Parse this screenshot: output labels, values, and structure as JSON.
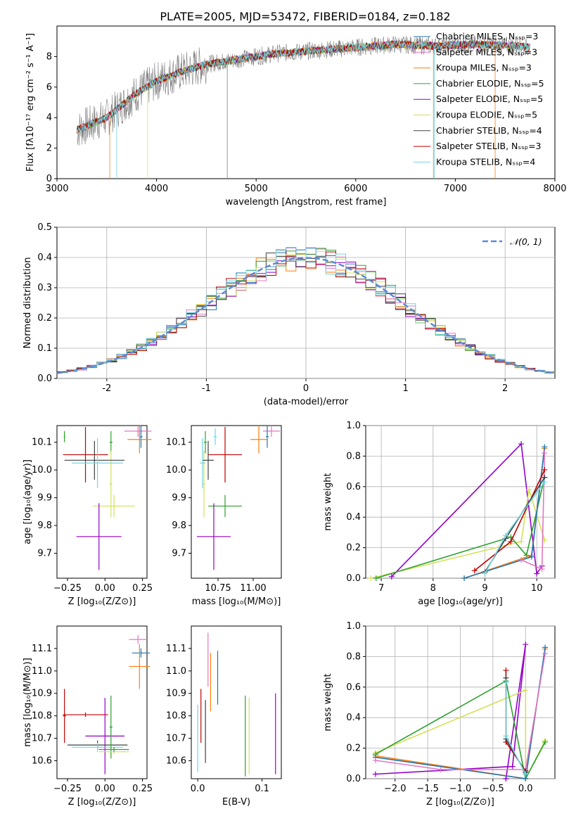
{
  "title": "PLATE=2005, MJD=53472, FIBERID=0184, z=0.182",
  "colors": {
    "chabrier_miles": "#1f77b4",
    "salpeter_miles": "#e377c2",
    "kroupa_miles": "#ff7f0e",
    "chabrier_elodie": "#2ca02c",
    "salpeter_elodie": "#9400c8",
    "kroupa_elodie": "#d4e157",
    "chabrier_stelib": "#404040",
    "salpeter_stelib": "#c00000",
    "kroupa_stelib": "#6fd6e0",
    "data": "#808080",
    "normal": "#5b8ad8"
  },
  "chart_data": [
    {
      "id": "spectrum",
      "type": "line",
      "xlabel": "wavelength [Angstrom, rest frame]",
      "ylabel": "Flux [fλ10⁻¹⁷ erg cm⁻² s⁻¹ A⁻¹]",
      "xlim": [
        3000,
        8000
      ],
      "ylim": [
        0,
        10
      ],
      "xticks": [
        3000,
        4000,
        5000,
        6000,
        7000,
        8000
      ],
      "yticks": [
        0,
        2,
        4,
        6,
        8
      ],
      "legend_position": "top-right",
      "continuum_x": [
        3200,
        3500,
        3800,
        4000,
        4200,
        4500,
        4800,
        5200,
        5600,
        6000,
        6400,
        6800,
        7200,
        7600,
        7750
      ],
      "continuum_y": [
        3.2,
        4.0,
        5.6,
        6.4,
        6.9,
        7.5,
        7.8,
        8.2,
        8.4,
        8.6,
        8.8,
        8.7,
        8.8,
        8.7,
        8.6
      ],
      "legend": [
        "Chabrier MILES, Nₛₛₚ=3",
        "Salpeter MILES, Nₛₛₚ=3",
        "Kroupa MILES, Nₛₛₚ=3",
        "Chabrier ELODIE, Nₛₛₚ=5",
        "Salpeter ELODIE, Nₛₛₚ=5",
        "Kroupa ELODIE, Nₛₛₚ=5",
        "Chabrier STELIB, Nₛₛₚ=4",
        "Salpeter STELIB, Nₛₛₚ=3",
        "Kroupa STELIB, Nₛₛₚ=4"
      ]
    },
    {
      "id": "residuals",
      "type": "line",
      "xlabel": "(data-model)/error",
      "ylabel": "Normed distribution",
      "xlim": [
        -2.5,
        2.5
      ],
      "ylim": [
        0,
        0.5
      ],
      "xticks": [
        -2,
        -1,
        0,
        1,
        2
      ],
      "yticks": [
        0.0,
        0.1,
        0.2,
        0.3,
        0.4,
        0.5
      ],
      "grid": true,
      "legend_position": "top-right",
      "legend": [
        "𝒩(0, 1)"
      ],
      "bin_width": 0.1
    },
    {
      "id": "age_vs_Z",
      "type": "scatter",
      "xlabel": "Z [log₁₀(Z/Z⊙)]",
      "ylabel": "age  [log₁₀(age/yr)]",
      "xlim": [
        -0.32,
        0.28
      ],
      "ylim": [
        9.61,
        10.16
      ],
      "xticks": [
        -0.25,
        0.0,
        0.25
      ],
      "ytick_labels": [
        "9.7",
        "9.8",
        "9.9",
        "10.0",
        "10.1"
      ],
      "points": [
        {
          "model": "salpeter_miles",
          "x": 0.22,
          "y": 10.14,
          "xerr": 0.09,
          "yerr": 0.02
        },
        {
          "model": "chabrier_miles",
          "x": 0.24,
          "y": 10.12,
          "xerr": 0.01,
          "yerr": 0.04
        },
        {
          "model": "kroupa_miles",
          "x": 0.23,
          "y": 10.11,
          "xerr": 0.08,
          "yerr": 0.05
        },
        {
          "model": "chabrier_elodie",
          "x": 0.04,
          "y": 10.1,
          "xerr": 0.01,
          "yerr": 0.04
        },
        {
          "model": "kroupa_elodie",
          "x": 0.04,
          "y": 9.95,
          "xerr": 0.01,
          "yerr": 0.12
        },
        {
          "model": "salpeter_stelib",
          "x": -0.13,
          "y": 10.055,
          "xerr": 0.15,
          "yerr": 0.1
        },
        {
          "model": "chabrier_stelib",
          "x": -0.07,
          "y": 10.035,
          "xerr": 0.2,
          "yerr": 0.07
        },
        {
          "model": "kroupa_stelib",
          "x": -0.05,
          "y": 10.025,
          "xerr": 0.17,
          "yerr": 0.09
        },
        {
          "model": "kroupa_elodie",
          "x": 0.06,
          "y": 9.87,
          "xerr": 0.14,
          "yerr": 0.04
        },
        {
          "model": "salpeter_elodie",
          "x": -0.04,
          "y": 9.76,
          "xerr": 0.15,
          "yerr": 0.12
        },
        {
          "model": "chabrier_elodie",
          "x": -0.27,
          "y": 10.12,
          "xerr": 0.005,
          "yerr": 0.02
        }
      ]
    },
    {
      "id": "age_vs_mass",
      "type": "scatter",
      "xlabel": "mass [log₁₀(M/M⊙)]",
      "ylabel": "",
      "xlim": [
        10.56,
        11.2
      ],
      "ylim": [
        9.61,
        10.16
      ],
      "xticks": [
        10.75,
        11.0
      ],
      "ytick_labels": [
        "9.7",
        "9.8",
        "9.9",
        "10.0",
        "10.1"
      ],
      "points": [
        {
          "model": "salpeter_miles",
          "x": 11.13,
          "y": 10.14,
          "xerr": 0.06,
          "yerr": 0.02
        },
        {
          "model": "chabrier_miles",
          "x": 11.1,
          "y": 10.12,
          "xerr": 0.01,
          "yerr": 0.04
        },
        {
          "model": "kroupa_miles",
          "x": 11.04,
          "y": 10.11,
          "xerr": 0.06,
          "yerr": 0.05
        },
        {
          "model": "chabrier_elodie",
          "x": 10.66,
          "y": 10.1,
          "xerr": 0.01,
          "yerr": 0.04
        },
        {
          "model": "kroupa_elodie",
          "x": 10.65,
          "y": 9.95,
          "xerr": 0.01,
          "yerr": 0.12
        },
        {
          "model": "salpeter_stelib",
          "x": 10.8,
          "y": 10.055,
          "xerr": 0.12,
          "yerr": 0.1
        },
        {
          "model": "chabrier_stelib",
          "x": 10.68,
          "y": 10.035,
          "xerr": 0.04,
          "yerr": 0.07
        },
        {
          "model": "kroupa_stelib",
          "x": 10.64,
          "y": 10.025,
          "xerr": 0.02,
          "yerr": 0.09
        },
        {
          "model": "chabrier_elodie",
          "x": 10.8,
          "y": 9.87,
          "xerr": 0.12,
          "yerr": 0.04
        },
        {
          "model": "salpeter_elodie",
          "x": 10.72,
          "y": 9.76,
          "xerr": 0.12,
          "yerr": 0.12
        },
        {
          "model": "kroupa_stelib",
          "x": 10.73,
          "y": 10.12,
          "xerr": 0.01,
          "yerr": 0.03
        }
      ]
    },
    {
      "id": "weight_vs_age",
      "type": "line",
      "xlabel": "age  [log₁₀(age/yr)]",
      "ylabel": "mass weight",
      "xlim": [
        6.7,
        10.35
      ],
      "ylim": [
        0,
        1
      ],
      "xticks": [
        7,
        8,
        9,
        10
      ],
      "yticks": [
        0.0,
        0.2,
        0.4,
        0.6,
        0.8,
        1.0
      ],
      "grid": true,
      "series": [
        {
          "model": "salpeter_elodie",
          "x": [
            7.2,
            9.7,
            10.0,
            10.1
          ],
          "y": [
            0.01,
            0.88,
            0.03,
            0.08
          ]
        },
        {
          "model": "kroupa_elodie",
          "x": [
            6.8,
            9.7,
            9.85,
            10.15
          ],
          "y": [
            0.0,
            0.24,
            0.58,
            0.25
          ]
        },
        {
          "model": "chabrier_elodie",
          "x": [
            6.9,
            9.5,
            9.8,
            10.15
          ],
          "y": [
            0.0,
            0.27,
            0.15,
            0.66
          ]
        },
        {
          "model": "kroupa_miles",
          "x": [
            8.6,
            9.9,
            10.15
          ],
          "y": [
            0.0,
            0.15,
            0.85
          ]
        },
        {
          "model": "chabrier_miles",
          "x": [
            8.6,
            9.9,
            10.15
          ],
          "y": [
            0.0,
            0.14,
            0.86
          ]
        },
        {
          "model": "salpeter_miles",
          "x": [
            9.7,
            10.1,
            10.15
          ],
          "y": [
            0.12,
            0.06,
            0.82
          ]
        },
        {
          "model": "salpeter_stelib",
          "x": [
            8.8,
            9.5,
            10.15
          ],
          "y": [
            0.05,
            0.24,
            0.71
          ]
        },
        {
          "model": "chabrier_stelib",
          "x": [
            9.0,
            9.4,
            10.15
          ],
          "y": [
            0.04,
            0.26,
            0.66
          ]
        },
        {
          "model": "kroupa_stelib",
          "x": [
            9.0,
            9.4,
            10.15
          ],
          "y": [
            0.03,
            0.28,
            0.63
          ]
        }
      ]
    },
    {
      "id": "mass_vs_Z",
      "type": "scatter",
      "xlabel": "Z [log₁₀(Z/Z⊙)]",
      "ylabel": "mass [log₁₀(M/M⊙)]",
      "xlim": [
        -0.32,
        0.28
      ],
      "ylim": [
        10.52,
        11.2
      ],
      "xticks": [
        -0.25,
        0.0,
        0.25
      ],
      "ytick_labels": [
        "10.6",
        "10.7",
        "10.8",
        "10.9",
        "11.0",
        "11.1"
      ],
      "points": [
        {
          "model": "salpeter_miles",
          "x": 0.22,
          "y": 11.14,
          "xerr": 0.06,
          "yerr": 0.02
        },
        {
          "model": "chabrier_miles",
          "x": 0.24,
          "y": 11.08,
          "xerr": 0.06,
          "yerr": 0.02
        },
        {
          "model": "kroupa_miles",
          "x": 0.23,
          "y": 11.02,
          "xerr": 0.07,
          "yerr": 0.1
        },
        {
          "model": "salpeter_stelib",
          "x": -0.27,
          "y": 10.8,
          "xerr": 0.01,
          "yerr": 0.12
        },
        {
          "model": "salpeter_stelib",
          "x": -0.13,
          "y": 10.805,
          "xerr": 0.15,
          "yerr": 0.01
        },
        {
          "model": "salpeter_elodie",
          "x": 0.0,
          "y": 10.71,
          "xerr": 0.13,
          "yerr": 0.17
        },
        {
          "model": "chabrier_stelib",
          "x": -0.05,
          "y": 10.67,
          "xerr": 0.2,
          "yerr": 0.02
        },
        {
          "model": "kroupa_stelib",
          "x": -0.05,
          "y": 10.66,
          "xerr": 0.17,
          "yerr": 0.02
        },
        {
          "model": "chabrier_elodie",
          "x": 0.04,
          "y": 10.75,
          "xerr": 0.01,
          "yerr": 0.14
        },
        {
          "model": "kroupa_elodie",
          "x": 0.06,
          "y": 10.64,
          "xerr": 0.1,
          "yerr": 0.01
        },
        {
          "model": "chabrier_elodie",
          "x": 0.06,
          "y": 10.65,
          "xerr": 0.1,
          "yerr": 0.01
        }
      ]
    },
    {
      "id": "mass_vs_ebv",
      "type": "scatter",
      "xlabel": "E(B-V)",
      "ylabel": "",
      "xlim": [
        -0.01,
        0.13
      ],
      "ylim": [
        10.52,
        11.2
      ],
      "xticks": [
        0.0,
        0.1
      ],
      "ytick_labels": [
        "10.6",
        "10.7",
        "10.8",
        "10.9",
        "11.0",
        "11.1"
      ],
      "points": [
        {
          "model": "kroupa_stelib",
          "x": 0.0,
          "y": 10.7,
          "xerr": 0,
          "yerr": 0.15
        },
        {
          "model": "salpeter_stelib",
          "x": 0.005,
          "y": 10.8,
          "xerr": 0,
          "yerr": 0.12
        },
        {
          "model": "chabrier_stelib",
          "x": 0.012,
          "y": 10.73,
          "xerr": 0,
          "yerr": 0.14
        },
        {
          "model": "salpeter_miles",
          "x": 0.016,
          "y": 11.05,
          "xerr": 0,
          "yerr": 0.12
        },
        {
          "model": "kroupa_miles",
          "x": 0.02,
          "y": 10.95,
          "xerr": 0,
          "yerr": 0.13
        },
        {
          "model": "chabrier_miles",
          "x": 0.031,
          "y": 10.97,
          "xerr": 0,
          "yerr": 0.12
        },
        {
          "model": "chabrier_elodie",
          "x": 0.074,
          "y": 10.71,
          "xerr": 0,
          "yerr": 0.18
        },
        {
          "model": "kroupa_elodie",
          "x": 0.08,
          "y": 10.71,
          "xerr": 0,
          "yerr": 0.17
        },
        {
          "model": "salpeter_elodie",
          "x": 0.121,
          "y": 10.72,
          "xerr": 0,
          "yerr": 0.18
        }
      ]
    },
    {
      "id": "weight_vs_Z",
      "type": "line",
      "xlabel": "Z [log₁₀(Z/Z⊙)]",
      "ylabel": "mass weight",
      "xlim": [
        -2.45,
        0.45
      ],
      "ylim": [
        0,
        1
      ],
      "xticks": [
        -2.0,
        -1.5,
        -1.0,
        -0.5,
        0.0
      ],
      "yticks": [
        0.0,
        0.2,
        0.4,
        0.6,
        0.8,
        1.0
      ],
      "grid": true,
      "series": [
        {
          "model": "salpeter_elodie",
          "x": [
            -2.3,
            -0.2,
            0.0,
            -0.3,
            -0.3
          ],
          "y": [
            0.03,
            0.08,
            0.88,
            0.0,
            0.0
          ]
        },
        {
          "model": "kroupa_elodie",
          "x": [
            -2.3,
            0.0,
            0.0,
            0.3
          ],
          "y": [
            0.17,
            0.58,
            0.0,
            0.25
          ]
        },
        {
          "model": "chabrier_elodie",
          "x": [
            -2.3,
            -0.3,
            0.0,
            0.3
          ],
          "y": [
            0.16,
            0.64,
            0.0,
            0.24
          ]
        },
        {
          "model": "kroupa_miles",
          "x": [
            -2.3,
            0.0,
            0.3
          ],
          "y": [
            0.15,
            0.0,
            0.85
          ]
        },
        {
          "model": "chabrier_miles",
          "x": [
            -2.3,
            0.0,
            0.3
          ],
          "y": [
            0.14,
            0.0,
            0.86
          ]
        },
        {
          "model": "salpeter_miles",
          "x": [
            -2.3,
            -1.3,
            0.0,
            0.3
          ],
          "y": [
            0.12,
            0.06,
            0.06,
            0.82
          ]
        },
        {
          "model": "salpeter_stelib",
          "x": [
            -0.3,
            -0.3,
            0.0
          ],
          "y": [
            0.71,
            0.24,
            0.05
          ]
        },
        {
          "model": "chabrier_stelib",
          "x": [
            -0.3,
            -0.3,
            0.0
          ],
          "y": [
            0.66,
            0.26,
            0.04
          ]
        },
        {
          "model": "kroupa_stelib",
          "x": [
            -0.3,
            -0.3,
            0.0
          ],
          "y": [
            0.63,
            0.28,
            0.03
          ]
        }
      ]
    }
  ]
}
